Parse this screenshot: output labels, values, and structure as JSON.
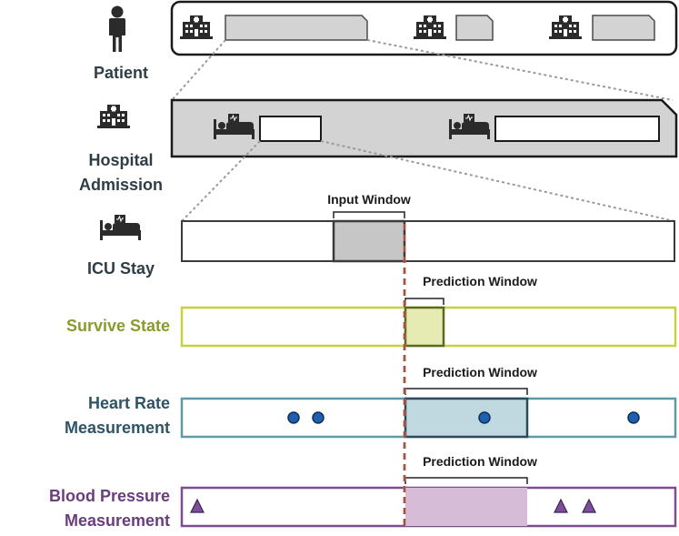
{
  "levels": {
    "patient": {
      "label": "Patient",
      "icon": "person-icon"
    },
    "hospital_admission": {
      "line1": "Hospital",
      "line2": "Admission",
      "icon": "hospital-icon"
    },
    "icu_stay": {
      "label": "ICU Stay",
      "icon": "icu-bed-icon"
    }
  },
  "windows": {
    "input": "Input Window",
    "prediction_survive": "Prediction Window",
    "prediction_heart_rate": "Prediction Window",
    "prediction_blood_pressure": "Prediction Window"
  },
  "tasks": {
    "survive_state": {
      "label": "Survive State",
      "color": "#8b9a2d",
      "fill": "#e6ebb4",
      "border": "#c5d23e"
    },
    "heart_rate": {
      "line1": "Heart Rate",
      "line2": "Measurement",
      "color": "#2e5566",
      "fill": "#c0d8e0",
      "border": "#5b9aa6",
      "marker": "circle"
    },
    "blood_pressure": {
      "line1": "Blood Pressure",
      "line2": "Measurement",
      "color": "#6a3d7c",
      "fill": "#d6bcd6",
      "border": "#7a4f8c",
      "marker": "triangle"
    }
  },
  "colors": {
    "label_dark": "#2f3e46",
    "cutoff_line": "#e8705f",
    "marker_blue": "#1f5fb0",
    "marker_purple": "#7b4f9a",
    "segment_gray": "#d3d3d3"
  }
}
